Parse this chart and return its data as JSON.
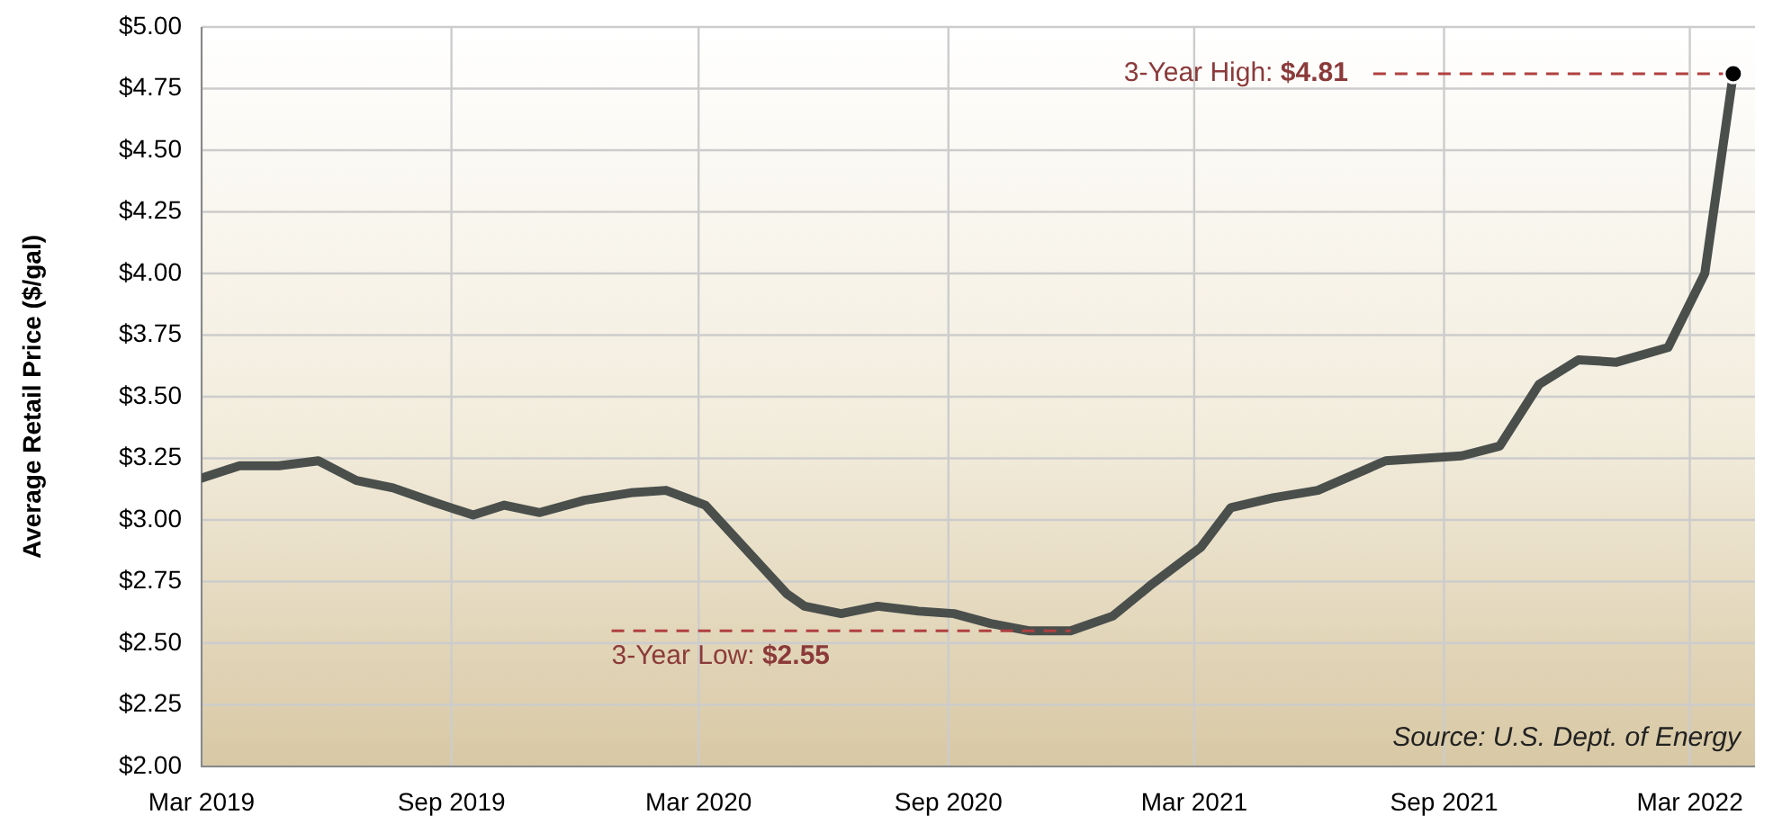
{
  "chart_data": {
    "type": "line",
    "ylabel": "Average Retail Price ($/gal)",
    "x": [
      "2019-03-01",
      "2019-03-29",
      "2019-04-27",
      "2019-05-26",
      "2019-06-23",
      "2019-07-20",
      "2019-08-20",
      "2019-09-17",
      "2019-10-10",
      "2019-11-05",
      "2019-12-08",
      "2020-01-11",
      "2020-02-06",
      "2020-03-06",
      "2020-05-05",
      "2020-05-18",
      "2020-06-14",
      "2020-07-11",
      "2020-08-10",
      "2020-09-05",
      "2020-10-02",
      "2020-10-31",
      "2020-11-30",
      "2020-12-31",
      "2021-01-29",
      "2021-03-06",
      "2021-03-28",
      "2021-04-28",
      "2021-05-31",
      "2021-07-20",
      "2021-09-14",
      "2021-10-12",
      "2021-11-10",
      "2021-12-09",
      "2022-01-06",
      "2022-02-13",
      "2022-03-12",
      "2022-04-02"
    ],
    "series": [
      {
        "color": "#4a4f4c",
        "values": [
          3.17,
          3.22,
          3.22,
          3.24,
          3.16,
          3.13,
          3.07,
          3.02,
          3.06,
          3.03,
          3.08,
          3.11,
          3.12,
          3.06,
          2.7,
          2.65,
          2.62,
          2.65,
          2.63,
          2.62,
          2.58,
          2.55,
          2.55,
          2.61,
          2.74,
          2.89,
          3.05,
          3.09,
          3.12,
          3.24,
          3.26,
          3.3,
          3.55,
          3.65,
          3.64,
          3.7,
          4.0,
          4.81
        ]
      }
    ],
    "xlim": [
      "2019-03-01",
      "2022-04-18"
    ],
    "xticks": [
      {
        "value": "2019-03",
        "label": "Mar 2019"
      },
      {
        "value": "2019-09",
        "label": "Sep 2019"
      },
      {
        "value": "2020-03",
        "label": "Mar 2020"
      },
      {
        "value": "2020-09",
        "label": "Sep 2020"
      },
      {
        "value": "2021-03",
        "label": "Mar 2021"
      },
      {
        "value": "2021-09",
        "label": "Sep 2021"
      },
      {
        "value": "2022-03",
        "label": "Mar 2022"
      }
    ],
    "ylim": [
      2,
      5
    ],
    "yticks": [
      {
        "value": 2,
        "label": "$2.00"
      },
      {
        "value": 2.25,
        "label": "$2.25"
      },
      {
        "value": 2.5,
        "label": "$2.50"
      },
      {
        "value": 2.75,
        "label": "$2.75"
      },
      {
        "value": 3,
        "label": "$3.00"
      },
      {
        "value": 3.25,
        "label": "$3.25"
      },
      {
        "value": 3.5,
        "label": "$3.50"
      },
      {
        "value": 3.75,
        "label": "$3.75"
      },
      {
        "value": 4,
        "label": "$4.00"
      },
      {
        "value": 4.25,
        "label": "$4.25"
      },
      {
        "value": 4.5,
        "label": "$4.50"
      },
      {
        "value": 4.75,
        "label": "$4.75"
      },
      {
        "value": 5,
        "label": "$5.00"
      }
    ],
    "grid": true,
    "marker": "none",
    "line_style": "solid",
    "legend": false,
    "annotations": [
      {
        "text": "3-Year High: $4.81",
        "x": "2022-04-02",
        "y": 4.81
      },
      {
        "text": "3-Year Low: $2.55",
        "x": "2020-11-30",
        "y": 2.55
      },
      "Source: U.S. Dept. of Energy"
    ]
  }
}
